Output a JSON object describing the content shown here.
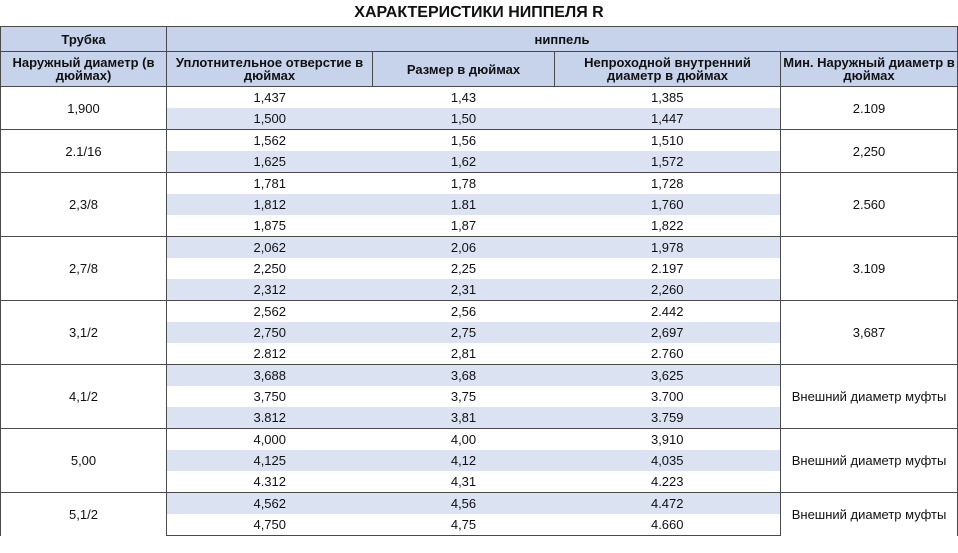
{
  "title": "ХАРАКТЕРИСТИКИ НИППЕЛЯ R",
  "header": {
    "group_pipe": "Трубка",
    "group_nipple": "ниппель",
    "col_pipe_od": "Наружный диаметр (в дюймах)",
    "col_seal_bore": "Уплотнительное отверстие в дюймах",
    "col_size": "Размер в дюймах",
    "col_drift": "Непроходной внутренний диаметр в дюймах",
    "col_min_od": "Мин. Наружный диаметр в дюймах"
  },
  "groups": [
    {
      "pipe_od": "1,900",
      "min_od": "2.109",
      "rows": [
        [
          "1,437",
          "1,43",
          "1,385"
        ],
        [
          "1,500",
          "1,50",
          "1,447"
        ]
      ]
    },
    {
      "pipe_od": "2.1/16",
      "min_od": "2,250",
      "rows": [
        [
          "1,562",
          "1,56",
          "1,510"
        ],
        [
          "1,625",
          "1,62",
          "1,572"
        ]
      ]
    },
    {
      "pipe_od": "2,3/8",
      "min_od": "2.560",
      "rows": [
        [
          "1,781",
          "1,78",
          "1,728"
        ],
        [
          "1,812",
          "1.81",
          "1,760"
        ],
        [
          "1,875",
          "1,87",
          "1,822"
        ]
      ]
    },
    {
      "pipe_od": "2,7/8",
      "min_od": "3.109",
      "rows": [
        [
          "2,062",
          "2,06",
          "1,978"
        ],
        [
          "2,250",
          "2,25",
          "2.197"
        ],
        [
          "2,312",
          "2,31",
          "2,260"
        ]
      ]
    },
    {
      "pipe_od": "3,1/2",
      "min_od": "3,687",
      "rows": [
        [
          "2,562",
          "2,56",
          "2.442"
        ],
        [
          "2,750",
          "2,75",
          "2,697"
        ],
        [
          "2.812",
          "2,81",
          "2.760"
        ]
      ]
    },
    {
      "pipe_od": "4,1/2",
      "min_od": "Внешний диаметр муфты",
      "rows": [
        [
          "3,688",
          "3,68",
          "3,625"
        ],
        [
          "3,750",
          "3,75",
          "3.700"
        ],
        [
          "3.812",
          "3,81",
          "3.759"
        ]
      ]
    },
    {
      "pipe_od": "5,00",
      "min_od": "Внешний диаметр муфты",
      "rows": [
        [
          "4,000",
          "4,00",
          "3,910"
        ],
        [
          "4,125",
          "4,12",
          "4,035"
        ],
        [
          "4.312",
          "4,31",
          "4.223"
        ]
      ]
    },
    {
      "pipe_od": "5,1/2",
      "min_od": "Внешний диаметр муфты",
      "rows": [
        [
          "4,562",
          "4,56",
          "4.472"
        ],
        [
          "4,750",
          "4,75",
          "4.660"
        ]
      ]
    }
  ]
}
